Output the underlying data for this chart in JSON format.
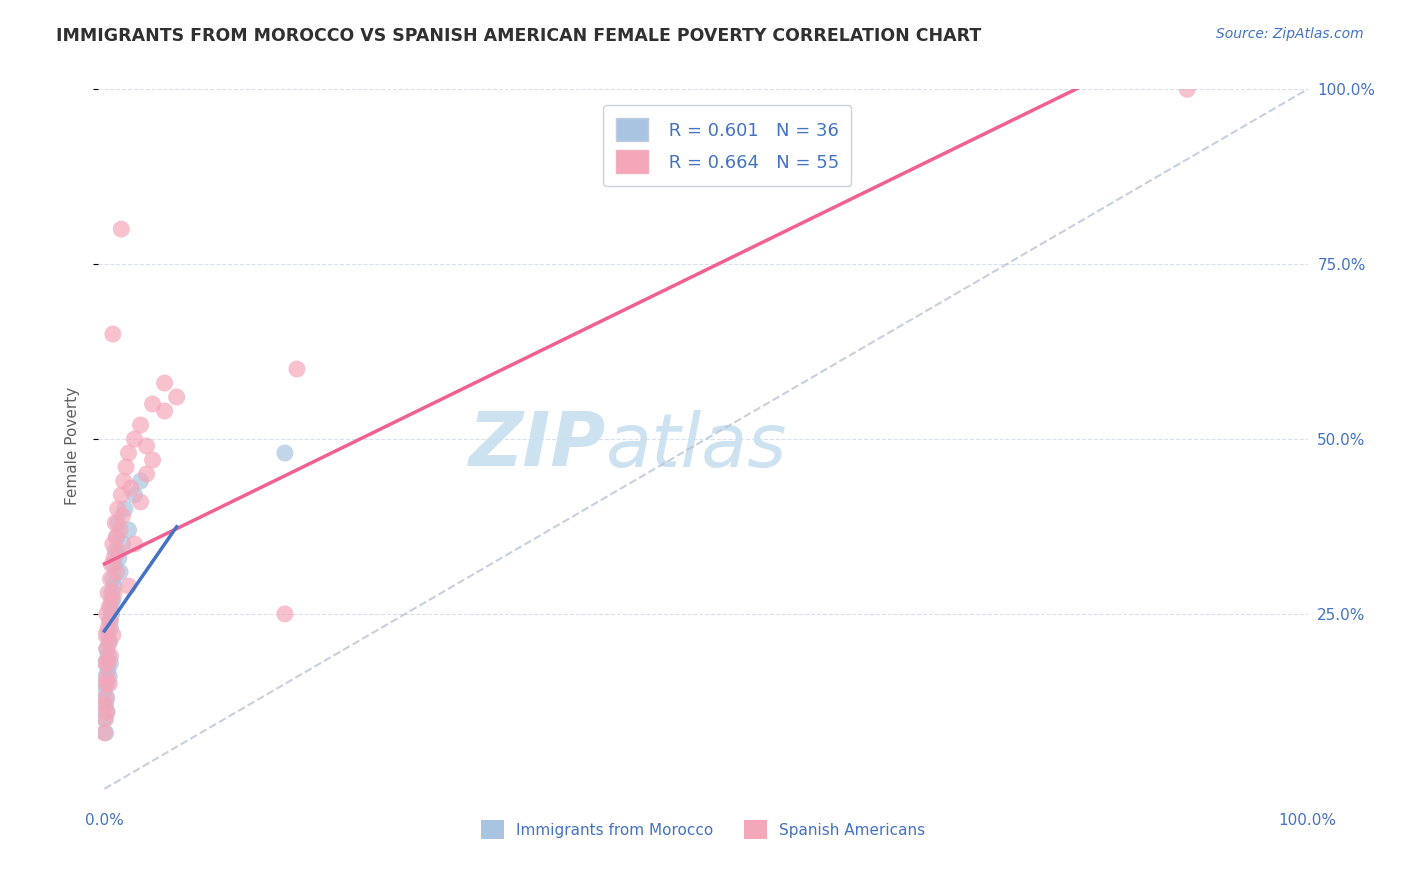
{
  "title": "IMMIGRANTS FROM MOROCCO VS SPANISH AMERICAN FEMALE POVERTY CORRELATION CHART",
  "source": "Source: ZipAtlas.com",
  "ylabel": "Female Poverty",
  "legend_label1": "Immigrants from Morocco",
  "legend_label2": "Spanish Americans",
  "r1": 0.601,
  "n1": 36,
  "r2": 0.664,
  "n2": 55,
  "color_blue": "#a8c4e0",
  "color_pink": "#f4a7b9",
  "color_blue_line": "#4472c4",
  "color_pink_line": "#f06090",
  "color_grey_dash": "#b0bcd0",
  "watermark": "ZIPatlas",
  "watermark_color": "#cce0f0",
  "blue_points_x": [
    0.0,
    0.0,
    0.001,
    0.001,
    0.001,
    0.001,
    0.002,
    0.002,
    0.002,
    0.002,
    0.003,
    0.003,
    0.003,
    0.004,
    0.004,
    0.004,
    0.005,
    0.005,
    0.005,
    0.006,
    0.006,
    0.007,
    0.007,
    0.008,
    0.008,
    0.009,
    0.01,
    0.011,
    0.012,
    0.013,
    0.015,
    0.017,
    0.02,
    0.025,
    0.03,
    0.15
  ],
  "blue_points_y": [
    0.14,
    0.1,
    0.18,
    0.12,
    0.16,
    0.08,
    0.2,
    0.15,
    0.13,
    0.11,
    0.22,
    0.17,
    0.19,
    0.24,
    0.21,
    0.16,
    0.26,
    0.23,
    0.18,
    0.28,
    0.25,
    0.3,
    0.27,
    0.32,
    0.29,
    0.34,
    0.36,
    0.38,
    0.33,
    0.31,
    0.35,
    0.4,
    0.37,
    0.42,
    0.44,
    0.48
  ],
  "pink_points_x": [
    0.0,
    0.0,
    0.001,
    0.001,
    0.001,
    0.001,
    0.001,
    0.002,
    0.002,
    0.002,
    0.002,
    0.003,
    0.003,
    0.003,
    0.004,
    0.004,
    0.004,
    0.005,
    0.005,
    0.005,
    0.006,
    0.006,
    0.007,
    0.007,
    0.008,
    0.008,
    0.009,
    0.01,
    0.01,
    0.011,
    0.012,
    0.013,
    0.014,
    0.015,
    0.016,
    0.018,
    0.02,
    0.022,
    0.025,
    0.03,
    0.035,
    0.04,
    0.05,
    0.06,
    0.02,
    0.025,
    0.03,
    0.035,
    0.04,
    0.05,
    0.15,
    0.16,
    0.9,
    0.014,
    0.007
  ],
  "pink_points_y": [
    0.12,
    0.08,
    0.15,
    0.18,
    0.1,
    0.22,
    0.13,
    0.2,
    0.16,
    0.25,
    0.11,
    0.23,
    0.18,
    0.28,
    0.21,
    0.26,
    0.15,
    0.3,
    0.24,
    0.19,
    0.32,
    0.27,
    0.35,
    0.22,
    0.33,
    0.28,
    0.38,
    0.36,
    0.31,
    0.4,
    0.34,
    0.37,
    0.42,
    0.39,
    0.44,
    0.46,
    0.48,
    0.43,
    0.5,
    0.52,
    0.45,
    0.47,
    0.54,
    0.56,
    0.29,
    0.35,
    0.41,
    0.49,
    0.55,
    0.58,
    0.25,
    0.6,
    1.0,
    0.8,
    0.65
  ],
  "ytick_values": [
    0.25,
    0.5,
    0.75,
    1.0
  ],
  "xtick_labels": [
    "0.0%",
    "100.0%"
  ],
  "xtick_values": [
    0.0,
    1.0
  ],
  "grid_color": "#d0d8e8",
  "background_color": "#ffffff",
  "title_color": "#303030",
  "axis_label_color": "#4472c4"
}
